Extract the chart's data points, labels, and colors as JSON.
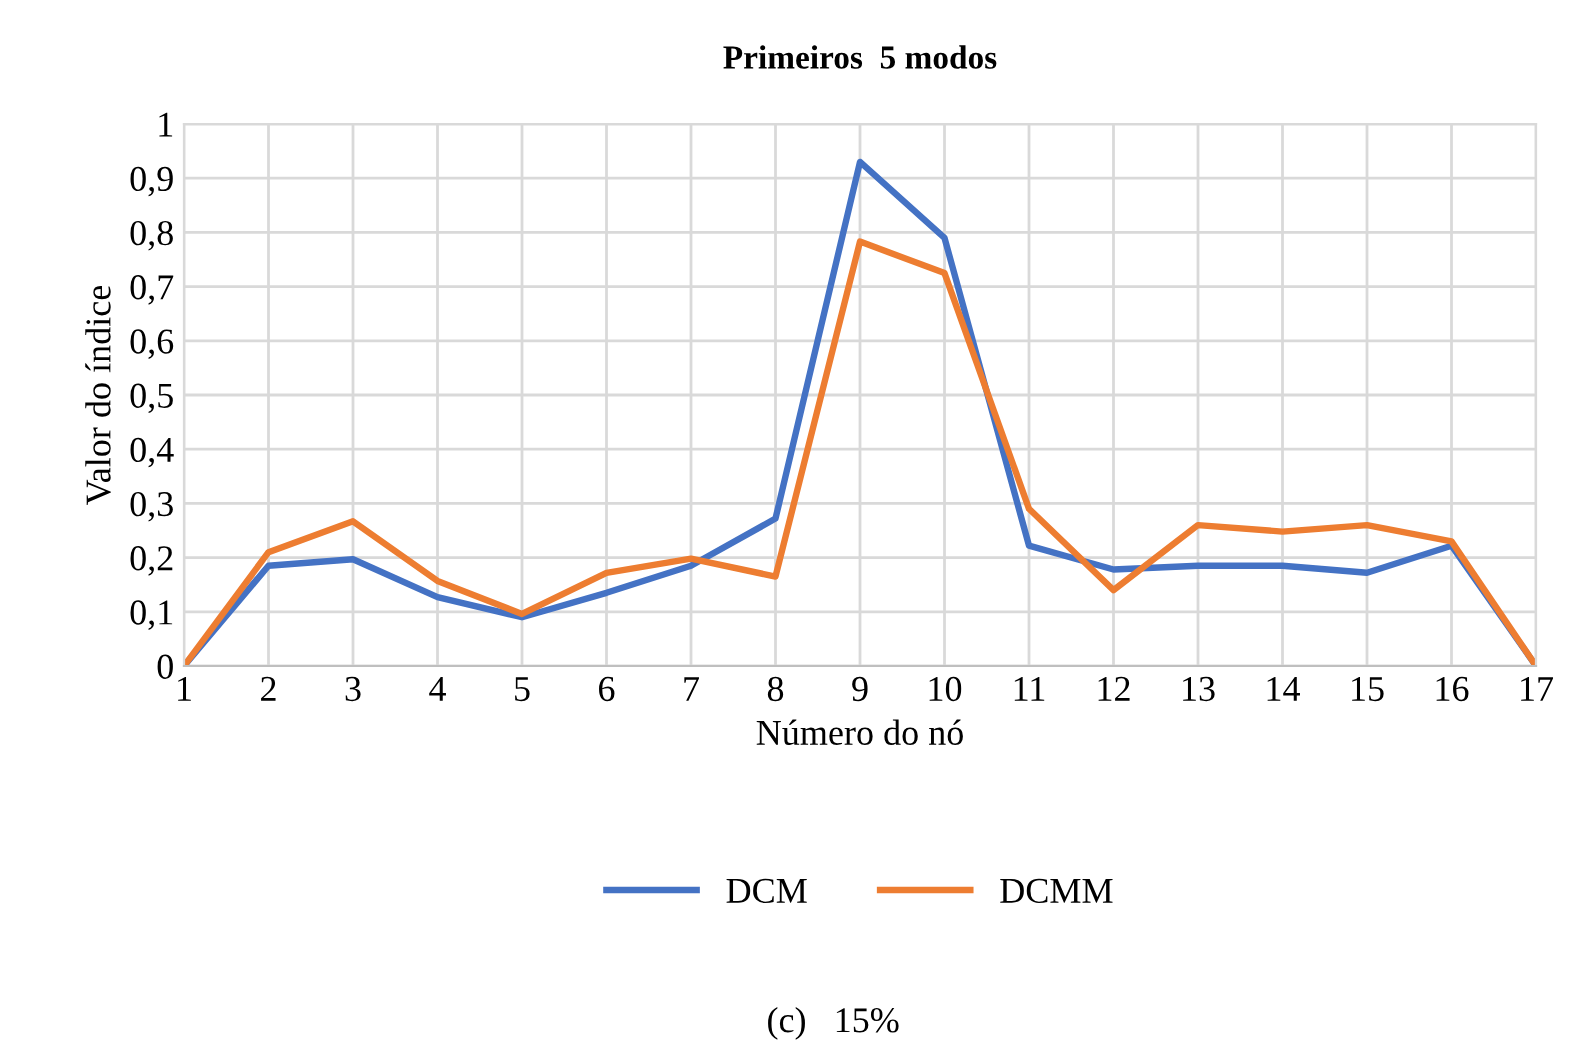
{
  "chart_data": {
    "type": "line",
    "title": "Primeiros  5 modos",
    "xlabel": "Número do nó",
    "ylabel": "Valor do índice",
    "categories": [
      "1",
      "2",
      "3",
      "4",
      "5",
      "6",
      "7",
      "8",
      "9",
      "10",
      "11",
      "12",
      "13",
      "14",
      "15",
      "16",
      "17"
    ],
    "series": [
      {
        "name": "DCM",
        "color": "#4472c4",
        "values": [
          0,
          0.185,
          0.197,
          0.127,
          0.09,
          0.135,
          0.185,
          0.272,
          0.93,
          0.79,
          0.222,
          0.178,
          0.185,
          0.185,
          0.172,
          0.222,
          0
        ]
      },
      {
        "name": "DCMM",
        "color": "#ed7d31",
        "values": [
          0,
          0.21,
          0.267,
          0.157,
          0.096,
          0.172,
          0.198,
          0.165,
          0.783,
          0.725,
          0.29,
          0.14,
          0.26,
          0.248,
          0.26,
          0.23,
          0
        ]
      }
    ],
    "ylim": [
      0,
      1
    ],
    "yticks": [
      0,
      {
        "value": 0.1,
        "label": "0,1"
      },
      {
        "value": 0.2,
        "label": "0,2"
      },
      {
        "value": 0.3,
        "label": "0,3"
      },
      {
        "value": 0.4,
        "label": "0,4"
      },
      {
        "value": 0.5,
        "label": "0,5"
      },
      {
        "value": 0.6,
        "label": "0,6"
      },
      {
        "value": 0.7,
        "label": "0,7"
      },
      {
        "value": 0.8,
        "label": "0,8"
      },
      {
        "value": 0.9,
        "label": "0,9"
      },
      1
    ],
    "grid": true,
    "legend": "bottom",
    "annotations": [
      "(c)   15%"
    ]
  }
}
